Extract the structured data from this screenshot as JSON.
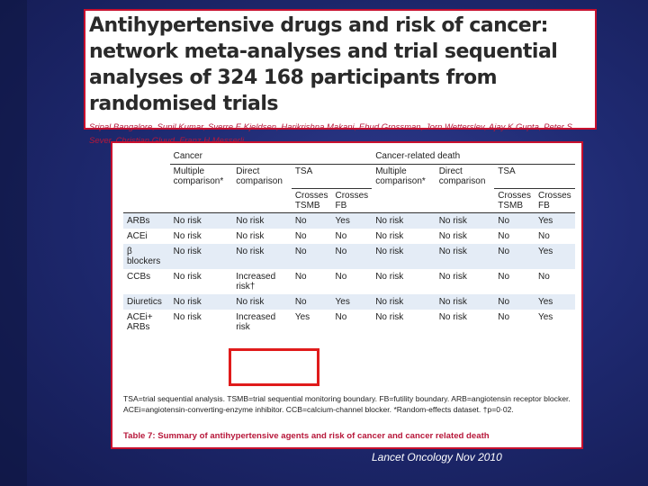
{
  "title": {
    "heading": "Antihypertensive drugs and risk of cancer: network meta-analyses and trial sequential analyses of 324 168 participants from randomised trials",
    "authors": "Sripal Bangalore, Sunil Kumar, Sverre E Kjeldsen, Harikrishna Makani, Ehud Grossman, Jorn Wetterslev, Ajay K Gupta, Peter S Sever, Christian Gluud, Franz H Messerli"
  },
  "table": {
    "group_headers": [
      "Cancer",
      "Cancer-related death"
    ],
    "sub_headers": [
      "Multiple comparison*",
      "Direct comparison",
      "TSA"
    ],
    "tsa_headers": [
      "Crosses TSMB",
      "Crosses FB"
    ],
    "rows": [
      {
        "drug": "ARBs",
        "cells": [
          "No risk",
          "No risk",
          "No",
          "Yes",
          "No risk",
          "No risk",
          "No",
          "Yes"
        ]
      },
      {
        "drug": "ACEi",
        "cells": [
          "No risk",
          "No risk",
          "No",
          "No",
          "No risk",
          "No risk",
          "No",
          "No"
        ]
      },
      {
        "drug": "β blockers",
        "cells": [
          "No risk",
          "No risk",
          "No",
          "No",
          "No risk",
          "No risk",
          "No",
          "Yes"
        ]
      },
      {
        "drug": "CCBs",
        "cells": [
          "No risk",
          "Increased risk†",
          "No",
          "No",
          "No risk",
          "No risk",
          "No",
          "No"
        ]
      },
      {
        "drug": "Diuretics",
        "cells": [
          "No risk",
          "No risk",
          "No",
          "Yes",
          "No risk",
          "No risk",
          "No",
          "Yes"
        ]
      },
      {
        "drug": "ACEi+ ARBs",
        "cells": [
          "No risk",
          "Increased risk",
          "Yes",
          "No",
          "No risk",
          "No risk",
          "No",
          "Yes"
        ]
      }
    ],
    "footnote": "TSA=trial sequential analysis. TSMB=trial sequential monitoring boundary. FB=futility boundary. ARB=angiotensin receptor blocker. ACEi=angiotensin-converting-enzyme inhibitor. CCB=calcium-channel blocker. *Random-effects dataset. †p=0·02.",
    "caption_label": "Table 7:",
    "caption_text": "Summary of antihypertensive agents and risk of cancer and cancer related death"
  },
  "citation": "Lancet Oncology Nov 2010",
  "colors": {
    "accent": "#b7173a",
    "highlight_box": "#e01b1b",
    "row_shade": "#e4ecf6"
  }
}
